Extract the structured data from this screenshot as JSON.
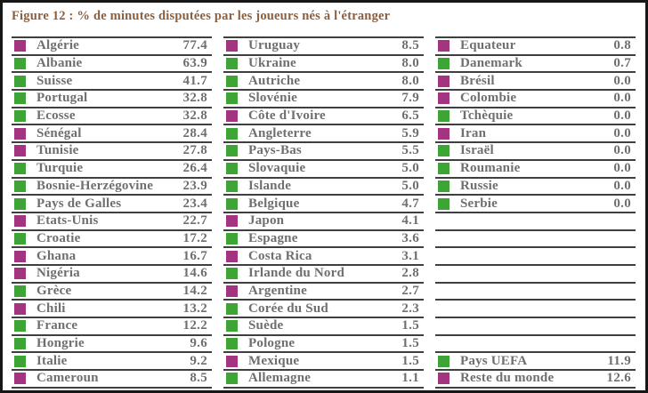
{
  "figure": {
    "title": "Figure 12 : % de minutes disputées par les joueurs nés à l'étranger"
  },
  "colors": {
    "uefa": "#3da435",
    "world": "#a23480",
    "title": "#8d5e3d",
    "text": "#6f6f6f",
    "line": "#3f3f3f",
    "border": "#161616",
    "background": "#ffffff"
  },
  "chart_data": {
    "type": "table",
    "title": "Figure 12 : % de minutes disputées par les joueurs nés à l'étranger",
    "value_meaning": "% de minutes disputées par les joueurs nés à l'étranger",
    "legend": [
      {
        "label": "Pays UEFA",
        "color_key": "uefa",
        "color": "#3da435"
      },
      {
        "label": "Reste du monde",
        "color_key": "world",
        "color": "#a23480"
      }
    ],
    "columns": [
      {
        "rows": [
          {
            "label": "Algérie",
            "value": "77.4",
            "group": "world"
          },
          {
            "label": "Albanie",
            "value": "63.9",
            "group": "uefa"
          },
          {
            "label": "Suisse",
            "value": "41.7",
            "group": "uefa"
          },
          {
            "label": "Portugal",
            "value": "32.8",
            "group": "uefa"
          },
          {
            "label": "Ecosse",
            "value": "32.8",
            "group": "uefa"
          },
          {
            "label": "Sénégal",
            "value": "28.4",
            "group": "world"
          },
          {
            "label": "Tunisie",
            "value": "27.8",
            "group": "world"
          },
          {
            "label": "Turquie",
            "value": "26.4",
            "group": "uefa"
          },
          {
            "label": "Bosnie-Herzégovine",
            "value": "23.9",
            "group": "uefa"
          },
          {
            "label": "Pays de Galles",
            "value": "23.4",
            "group": "uefa"
          },
          {
            "label": "Etats-Unis",
            "value": "22.7",
            "group": "world"
          },
          {
            "label": "Croatie",
            "value": "17.2",
            "group": "uefa"
          },
          {
            "label": "Ghana",
            "value": "16.7",
            "group": "world"
          },
          {
            "label": "Nigéria",
            "value": "14.6",
            "group": "world"
          },
          {
            "label": "Grèce",
            "value": "14.2",
            "group": "uefa"
          },
          {
            "label": "Chili",
            "value": "13.2",
            "group": "world"
          },
          {
            "label": "France",
            "value": "12.2",
            "group": "uefa"
          },
          {
            "label": "Hongrie",
            "value": "9.6",
            "group": "uefa"
          },
          {
            "label": "Italie",
            "value": "9.2",
            "group": "uefa"
          },
          {
            "label": "Cameroun",
            "value": "8.5",
            "group": "world"
          }
        ]
      },
      {
        "rows": [
          {
            "label": "Uruguay",
            "value": "8.5",
            "group": "world"
          },
          {
            "label": "Ukraine",
            "value": "8.0",
            "group": "uefa"
          },
          {
            "label": "Autriche",
            "value": "8.0",
            "group": "uefa"
          },
          {
            "label": "Slovénie",
            "value": "7.9",
            "group": "uefa"
          },
          {
            "label": "Côte d'Ivoire",
            "value": "6.5",
            "group": "world"
          },
          {
            "label": "Angleterre",
            "value": "5.9",
            "group": "uefa"
          },
          {
            "label": "Pays-Bas",
            "value": "5.5",
            "group": "uefa"
          },
          {
            "label": "Slovaquie",
            "value": "5.0",
            "group": "uefa"
          },
          {
            "label": "Islande",
            "value": "5.0",
            "group": "uefa"
          },
          {
            "label": "Belgique",
            "value": "4.7",
            "group": "uefa"
          },
          {
            "label": "Japon",
            "value": "4.1",
            "group": "world"
          },
          {
            "label": "Espagne",
            "value": "3.6",
            "group": "uefa"
          },
          {
            "label": "Costa Rica",
            "value": "3.1",
            "group": "world"
          },
          {
            "label": "Irlande du Nord",
            "value": "2.8",
            "group": "uefa"
          },
          {
            "label": "Argentine",
            "value": "2.7",
            "group": "world"
          },
          {
            "label": "Corée du Sud",
            "value": "2.3",
            "group": "uefa"
          },
          {
            "label": "Suède",
            "value": "1.5",
            "group": "uefa"
          },
          {
            "label": "Pologne",
            "value": "1.5",
            "group": "uefa"
          },
          {
            "label": "Mexique",
            "value": "1.5",
            "group": "world"
          },
          {
            "label": "Allemagne",
            "value": "1.1",
            "group": "uefa"
          }
        ]
      },
      {
        "rows": [
          {
            "label": "Equateur",
            "value": "0.8",
            "group": "world"
          },
          {
            "label": "Danemark",
            "value": "0.7",
            "group": "uefa"
          },
          {
            "label": "Brésil",
            "value": "0.0",
            "group": "world"
          },
          {
            "label": "Colombie",
            "value": "0.0",
            "group": "world"
          },
          {
            "label": "Tchèquie",
            "value": "0.0",
            "group": "uefa"
          },
          {
            "label": "Iran",
            "value": "0.0",
            "group": "world"
          },
          {
            "label": "Israël",
            "value": "0.0",
            "group": "uefa"
          },
          {
            "label": "Roumanie",
            "value": "0.0",
            "group": "uefa"
          },
          {
            "label": "Russie",
            "value": "0.0",
            "group": "uefa"
          },
          {
            "label": "Serbie",
            "value": "0.0",
            "group": "uefa"
          },
          {
            "label": "",
            "value": "",
            "group": null
          },
          {
            "label": "",
            "value": "",
            "group": null
          },
          {
            "label": "",
            "value": "",
            "group": null
          },
          {
            "label": "",
            "value": "",
            "group": null
          },
          {
            "label": "",
            "value": "",
            "group": null
          },
          {
            "label": "",
            "value": "",
            "group": null
          },
          {
            "label": "",
            "value": "",
            "group": null
          },
          {
            "label": "",
            "value": "",
            "group": null
          },
          {
            "label": "Pays UEFA",
            "value": "11.9",
            "group": "uefa",
            "kind": "summary"
          },
          {
            "label": "Reste du monde",
            "value": "12.6",
            "group": "world",
            "kind": "summary"
          }
        ]
      }
    ]
  }
}
